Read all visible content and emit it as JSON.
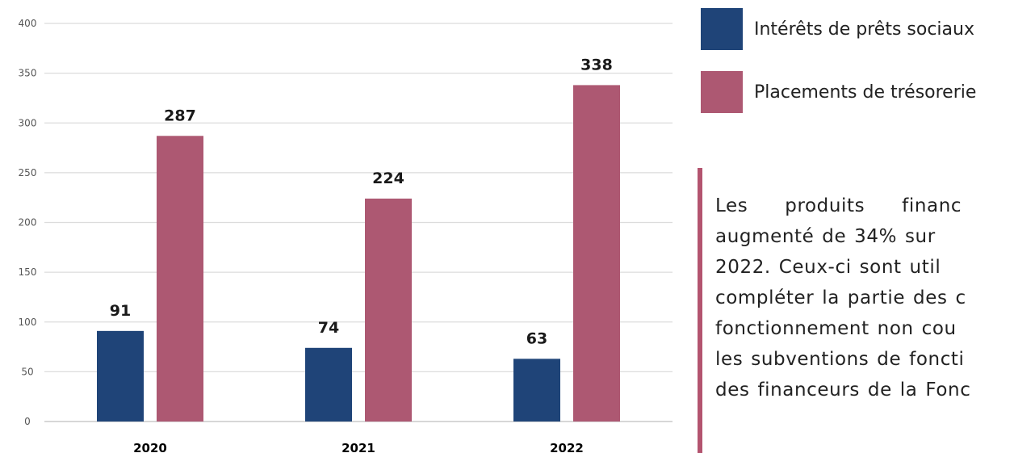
{
  "chart_data": {
    "type": "bar",
    "categories": [
      "2020",
      "2021",
      "2022"
    ],
    "series": [
      {
        "name": "Intérêts de prêts sociaux",
        "values": [
          91,
          74,
          63
        ],
        "color": "#1f4478"
      },
      {
        "name": "Placements de trésorerie",
        "values": [
          287,
          224,
          338
        ],
        "color": "#ad5872"
      }
    ],
    "ylim": [
      0,
      400
    ],
    "yticks": [
      0,
      50,
      100,
      150,
      200,
      250,
      300,
      350,
      400
    ],
    "grid": true,
    "legend": "right"
  },
  "legend": {
    "items": [
      {
        "label": "Intérêts de prêts sociaux",
        "color": "#1f4478"
      },
      {
        "label": "Placements de trésorerie",
        "color": "#ad5872"
      }
    ]
  },
  "note": {
    "border_color": "#b3546f",
    "lines": [
      "Les produits financ",
      "augmenté de 34% sur",
      "2022. Ceux-ci sont util",
      "compléter la partie des c",
      "fonctionnement non cou",
      "les subventions de foncti",
      "des financeurs de la Fonc"
    ]
  }
}
